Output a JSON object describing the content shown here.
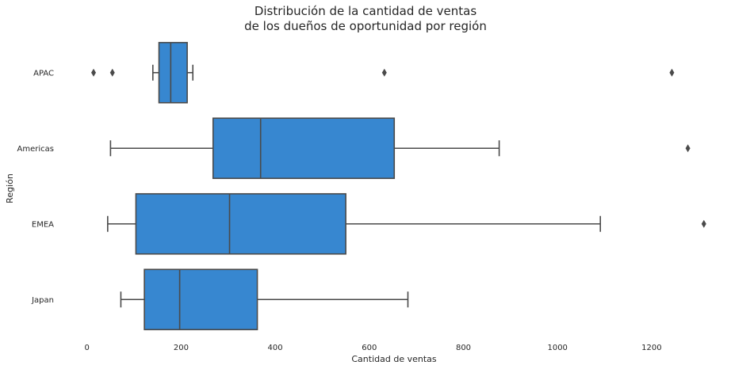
{
  "chart_data": {
    "type": "boxplot",
    "orientation": "horizontal",
    "title_lines": [
      "Distribución de la cantidad de ventas",
      "de los dueños de oportunidad por región"
    ],
    "xlabel": "Cantidad de ventas",
    "ylabel": "Región",
    "xlim": [
      -45,
      1340
    ],
    "xticks": [
      0,
      200,
      400,
      600,
      800,
      1000,
      1200
    ],
    "grid": false,
    "box_color": "#3787d0",
    "line_color": "#4a4a4a",
    "categories": [
      "APAC",
      "Americas",
      "EMEA",
      "Japan"
    ],
    "boxes": [
      {
        "category": "APAC",
        "whisker_low": 140,
        "q1": 153,
        "median": 178,
        "q3": 213,
        "whisker_high": 225,
        "outliers": [
          14,
          54,
          632,
          1243
        ]
      },
      {
        "category": "Americas",
        "whisker_low": 50,
        "q1": 268,
        "median": 369,
        "q3": 653,
        "whisker_high": 876,
        "outliers": [
          1277
        ]
      },
      {
        "category": "EMEA",
        "whisker_low": 44,
        "q1": 104,
        "median": 303,
        "q3": 550,
        "whisker_high": 1091,
        "outliers": [
          1311
        ]
      },
      {
        "category": "Japan",
        "whisker_low": 72,
        "q1": 122,
        "median": 197,
        "q3": 362,
        "whisker_high": 682,
        "outliers": []
      }
    ]
  }
}
